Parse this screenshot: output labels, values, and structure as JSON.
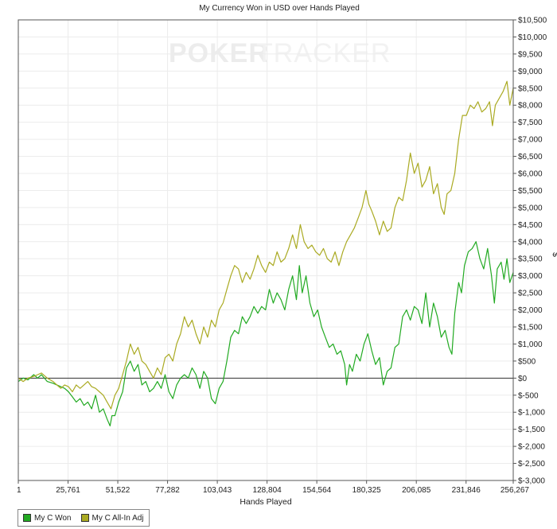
{
  "chart_data": {
    "type": "line",
    "title": "My Currency Won in USD over Hands Played",
    "xlabel": "Hands Played",
    "ylabel": "$",
    "watermark": {
      "dark": "POKER",
      "light": "TRACKER"
    },
    "xlim": [
      1,
      256267
    ],
    "ylim": [
      -3000,
      10500
    ],
    "x_ticks": [
      1,
      25761,
      51522,
      77282,
      103043,
      128804,
      154564,
      180325,
      206085,
      231846,
      256267
    ],
    "x_tick_labels": [
      "1",
      "25,761",
      "51,522",
      "77,282",
      "103,043",
      "128,804",
      "154,564",
      "180,325",
      "206,085",
      "231,846",
      "256,267"
    ],
    "y_ticks": [
      10500,
      10000,
      9500,
      9000,
      8500,
      8000,
      7500,
      7000,
      6500,
      6000,
      5500,
      5000,
      4500,
      4000,
      3500,
      3000,
      2500,
      2000,
      1500,
      1000,
      500,
      0,
      -500,
      -1000,
      -1500,
      -2000,
      -2500,
      -3000
    ],
    "y_tick_labels": [
      "$10,500",
      "$10,000",
      "$9,500",
      "$9,000",
      "$8,500",
      "$8,000",
      "$7,500",
      "$7,000",
      "$6,500",
      "$6,000",
      "$5,500",
      "$5,000",
      "$4,500",
      "$4,000",
      "$3,500",
      "$3,000",
      "$2,500",
      "$2,000",
      "$1,500",
      "$1,000",
      "$500",
      "$0",
      "$-500",
      "$-1,000",
      "$-1,500",
      "$-2,000",
      "$-2,500",
      "$-3,000"
    ],
    "grid": true,
    "legend_position": "bottom-left",
    "series": [
      {
        "name": "My C Won",
        "color": "#22aa22",
        "points": [
          [
            1,
            -100
          ],
          [
            2500,
            0
          ],
          [
            5000,
            -50
          ],
          [
            8000,
            100
          ],
          [
            10000,
            0
          ],
          [
            12000,
            100
          ],
          [
            15000,
            -100
          ],
          [
            18000,
            -150
          ],
          [
            20000,
            -200
          ],
          [
            22000,
            -250
          ],
          [
            24000,
            -300
          ],
          [
            26000,
            -400
          ],
          [
            28000,
            -550
          ],
          [
            30000,
            -700
          ],
          [
            32000,
            -600
          ],
          [
            34000,
            -800
          ],
          [
            36000,
            -700
          ],
          [
            38000,
            -900
          ],
          [
            40000,
            -500
          ],
          [
            42000,
            -1000
          ],
          [
            44000,
            -900
          ],
          [
            46000,
            -1200
          ],
          [
            47500,
            -1400
          ],
          [
            48500,
            -1100
          ],
          [
            50000,
            -1100
          ],
          [
            52000,
            -700
          ],
          [
            54000,
            -400
          ],
          [
            56000,
            300
          ],
          [
            58000,
            500
          ],
          [
            60000,
            200
          ],
          [
            62000,
            400
          ],
          [
            64000,
            -200
          ],
          [
            66000,
            -100
          ],
          [
            68000,
            -400
          ],
          [
            70000,
            -300
          ],
          [
            72000,
            -100
          ],
          [
            74000,
            -300
          ],
          [
            76000,
            100
          ],
          [
            78000,
            -400
          ],
          [
            80000,
            -600
          ],
          [
            82000,
            -200
          ],
          [
            84000,
            0
          ],
          [
            86000,
            100
          ],
          [
            88000,
            0
          ],
          [
            90000,
            300
          ],
          [
            92000,
            100
          ],
          [
            94000,
            -300
          ],
          [
            96000,
            200
          ],
          [
            98000,
            0
          ],
          [
            100000,
            -600
          ],
          [
            102000,
            -750
          ],
          [
            104000,
            -300
          ],
          [
            106000,
            -100
          ],
          [
            108000,
            500
          ],
          [
            110000,
            1200
          ],
          [
            112000,
            1400
          ],
          [
            114000,
            1300
          ],
          [
            116000,
            1800
          ],
          [
            118000,
            1600
          ],
          [
            120000,
            1800
          ],
          [
            122000,
            2100
          ],
          [
            124000,
            1900
          ],
          [
            126000,
            2100
          ],
          [
            128000,
            2000
          ],
          [
            130000,
            2600
          ],
          [
            132000,
            2200
          ],
          [
            134000,
            2500
          ],
          [
            136000,
            2300
          ],
          [
            138000,
            2000
          ],
          [
            140000,
            2600
          ],
          [
            142000,
            3000
          ],
          [
            144000,
            2300
          ],
          [
            145500,
            3300
          ],
          [
            147000,
            2500
          ],
          [
            149000,
            3000
          ],
          [
            151000,
            2200
          ],
          [
            153000,
            1800
          ],
          [
            155000,
            2000
          ],
          [
            157000,
            1500
          ],
          [
            159000,
            1200
          ],
          [
            161000,
            900
          ],
          [
            163000,
            1000
          ],
          [
            165000,
            700
          ],
          [
            167000,
            800
          ],
          [
            169000,
            400
          ],
          [
            170000,
            -200
          ],
          [
            171500,
            400
          ],
          [
            173000,
            200
          ],
          [
            175000,
            700
          ],
          [
            177000,
            500
          ],
          [
            179000,
            1000
          ],
          [
            181000,
            1300
          ],
          [
            183000,
            800
          ],
          [
            185000,
            400
          ],
          [
            187000,
            600
          ],
          [
            189000,
            -200
          ],
          [
            191000,
            200
          ],
          [
            193000,
            300
          ],
          [
            195000,
            900
          ],
          [
            197000,
            1000
          ],
          [
            199000,
            1800
          ],
          [
            201000,
            2000
          ],
          [
            203000,
            1700
          ],
          [
            205000,
            2100
          ],
          [
            207000,
            2000
          ],
          [
            209000,
            1600
          ],
          [
            211000,
            2500
          ],
          [
            213000,
            1500
          ],
          [
            215000,
            2200
          ],
          [
            217000,
            1800
          ],
          [
            219000,
            1200
          ],
          [
            221000,
            1400
          ],
          [
            223000,
            900
          ],
          [
            224500,
            700
          ],
          [
            226000,
            1900
          ],
          [
            228000,
            2800
          ],
          [
            229500,
            2500
          ],
          [
            231000,
            3300
          ],
          [
            233000,
            3700
          ],
          [
            235000,
            3800
          ],
          [
            237000,
            4000
          ],
          [
            239000,
            3500
          ],
          [
            241000,
            3200
          ],
          [
            243000,
            3800
          ],
          [
            245000,
            3000
          ],
          [
            246500,
            2200
          ],
          [
            248000,
            3200
          ],
          [
            250000,
            3400
          ],
          [
            251500,
            2900
          ],
          [
            253000,
            3500
          ],
          [
            254500,
            2800
          ],
          [
            256267,
            3100
          ]
        ]
      },
      {
        "name": "My C All-In Adj",
        "color": "#aaaa22",
        "points": [
          [
            1,
            0
          ],
          [
            2500,
            -100
          ],
          [
            5000,
            0
          ],
          [
            8000,
            50
          ],
          [
            10000,
            100
          ],
          [
            12000,
            150
          ],
          [
            15000,
            0
          ],
          [
            18000,
            -100
          ],
          [
            20000,
            -200
          ],
          [
            22000,
            -300
          ],
          [
            24000,
            -200
          ],
          [
            26000,
            -250
          ],
          [
            28000,
            -400
          ],
          [
            30000,
            -200
          ],
          [
            32000,
            -300
          ],
          [
            34000,
            -200
          ],
          [
            36000,
            -100
          ],
          [
            38000,
            -250
          ],
          [
            40000,
            -300
          ],
          [
            42000,
            -400
          ],
          [
            44000,
            -500
          ],
          [
            46000,
            -700
          ],
          [
            48000,
            -900
          ],
          [
            50000,
            -500
          ],
          [
            52000,
            -300
          ],
          [
            54000,
            100
          ],
          [
            56000,
            500
          ],
          [
            58000,
            1000
          ],
          [
            60000,
            700
          ],
          [
            62000,
            900
          ],
          [
            64000,
            500
          ],
          [
            66000,
            400
          ],
          [
            68000,
            200
          ],
          [
            70000,
            0
          ],
          [
            72000,
            300
          ],
          [
            74000,
            100
          ],
          [
            76000,
            600
          ],
          [
            78000,
            700
          ],
          [
            80000,
            500
          ],
          [
            82000,
            1000
          ],
          [
            84000,
            1300
          ],
          [
            86000,
            1800
          ],
          [
            88000,
            1500
          ],
          [
            90000,
            1700
          ],
          [
            92000,
            1300
          ],
          [
            94000,
            1000
          ],
          [
            96000,
            1500
          ],
          [
            98000,
            1200
          ],
          [
            100000,
            1700
          ],
          [
            102000,
            1500
          ],
          [
            104000,
            2000
          ],
          [
            106000,
            2200
          ],
          [
            108000,
            2600
          ],
          [
            110000,
            3000
          ],
          [
            112000,
            3300
          ],
          [
            114000,
            3200
          ],
          [
            116000,
            2800
          ],
          [
            118000,
            3100
          ],
          [
            120000,
            2900
          ],
          [
            122000,
            3200
          ],
          [
            124000,
            3600
          ],
          [
            126000,
            3300
          ],
          [
            128000,
            3100
          ],
          [
            130000,
            3400
          ],
          [
            132000,
            3300
          ],
          [
            134000,
            3700
          ],
          [
            136000,
            3400
          ],
          [
            138000,
            3500
          ],
          [
            140000,
            3800
          ],
          [
            142000,
            4200
          ],
          [
            144000,
            3800
          ],
          [
            146000,
            4500
          ],
          [
            148000,
            4000
          ],
          [
            150000,
            3800
          ],
          [
            152000,
            3900
          ],
          [
            154000,
            3700
          ],
          [
            156000,
            3600
          ],
          [
            158000,
            3800
          ],
          [
            160000,
            3500
          ],
          [
            162000,
            3400
          ],
          [
            164000,
            3700
          ],
          [
            166000,
            3300
          ],
          [
            168000,
            3700
          ],
          [
            170000,
            4000
          ],
          [
            172000,
            4200
          ],
          [
            174000,
            4400
          ],
          [
            176000,
            4700
          ],
          [
            178000,
            5000
          ],
          [
            180000,
            5500
          ],
          [
            181500,
            5100
          ],
          [
            183000,
            4900
          ],
          [
            185000,
            4600
          ],
          [
            187000,
            4200
          ],
          [
            189000,
            4600
          ],
          [
            191000,
            4300
          ],
          [
            193000,
            4400
          ],
          [
            195000,
            5000
          ],
          [
            197000,
            5300
          ],
          [
            199000,
            5200
          ],
          [
            201000,
            5800
          ],
          [
            203000,
            6600
          ],
          [
            205000,
            6000
          ],
          [
            207000,
            6300
          ],
          [
            209000,
            5600
          ],
          [
            211000,
            5800
          ],
          [
            213000,
            6200
          ],
          [
            215000,
            5400
          ],
          [
            217000,
            5700
          ],
          [
            219000,
            5000
          ],
          [
            220500,
            4800
          ],
          [
            222000,
            5400
          ],
          [
            224000,
            5500
          ],
          [
            226000,
            6000
          ],
          [
            228000,
            7000
          ],
          [
            230000,
            7700
          ],
          [
            232000,
            7700
          ],
          [
            234000,
            8000
          ],
          [
            236000,
            7900
          ],
          [
            238000,
            8100
          ],
          [
            240000,
            7800
          ],
          [
            242000,
            7900
          ],
          [
            244000,
            8100
          ],
          [
            245500,
            7400
          ],
          [
            247000,
            8000
          ],
          [
            249000,
            8200
          ],
          [
            251000,
            8400
          ],
          [
            253000,
            8700
          ],
          [
            254500,
            8000
          ],
          [
            256267,
            8500
          ]
        ]
      }
    ]
  }
}
